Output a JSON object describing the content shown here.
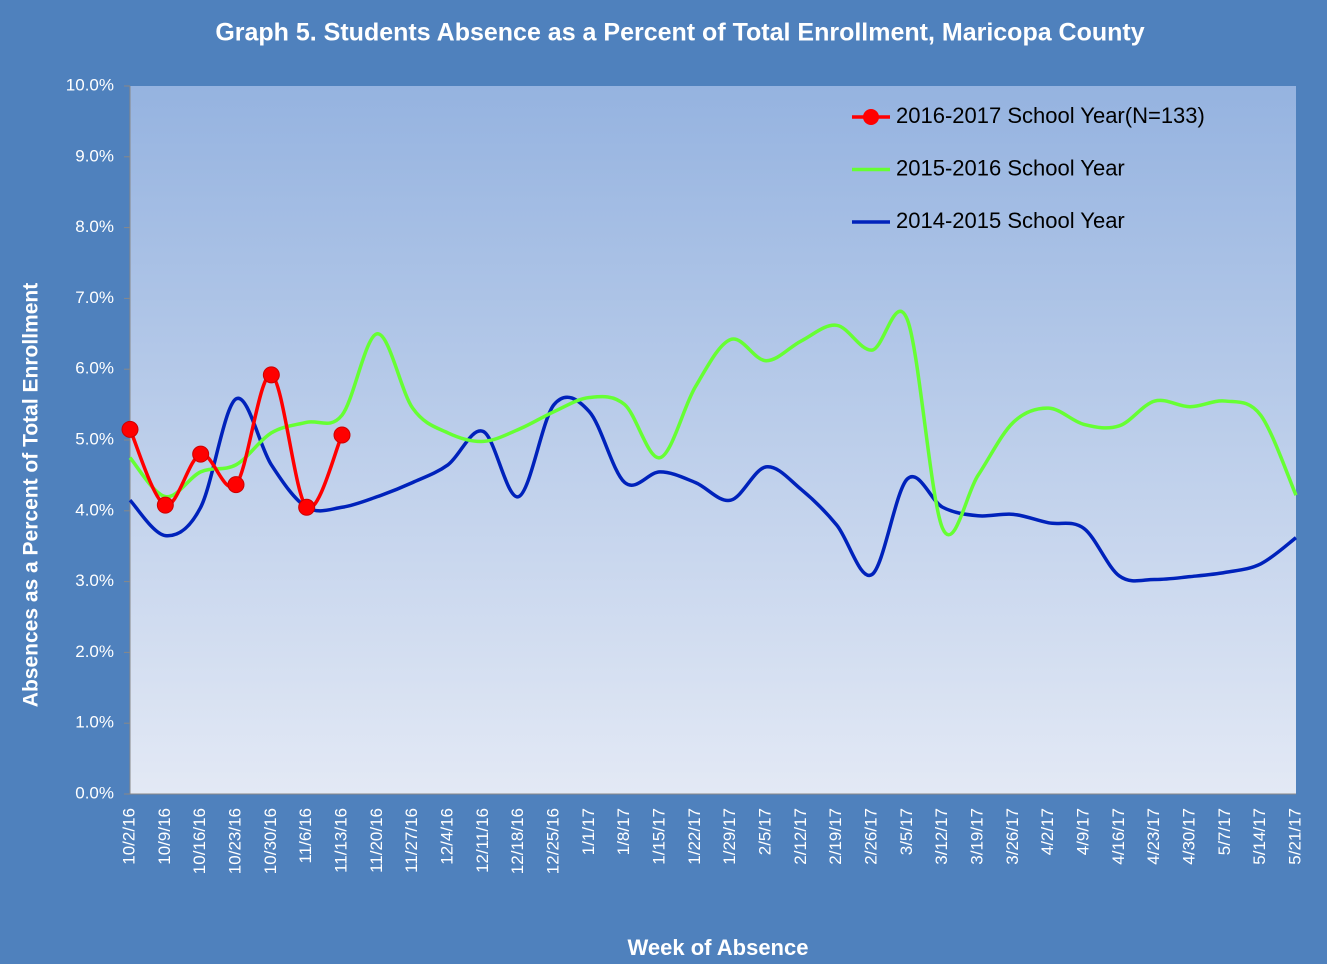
{
  "chart_data": {
    "type": "line",
    "title": "Graph 5. Students Absence as a Percent of Total Enrollment, Maricopa County",
    "x_label": "Week of Absence",
    "y_label": "Absences as a Percent of Total Enrollment",
    "categories": [
      "10/2/16",
      "10/9/16",
      "10/16/16",
      "10/23/16",
      "10/30/16",
      "11/6/16",
      "11/13/16",
      "11/20/16",
      "11/27/16",
      "12/4/16",
      "12/11/16",
      "12/18/16",
      "12/25/16",
      "1/1/17",
      "1/8/17",
      "1/15/17",
      "1/22/17",
      "1/29/17",
      "2/5/17",
      "2/12/17",
      "2/19/17",
      "2/26/17",
      "3/5/17",
      "3/12/17",
      "3/19/17",
      "3/26/17",
      "4/2/17",
      "4/9/17",
      "4/16/17",
      "4/23/17",
      "4/30/17",
      "5/7/17",
      "5/14/17",
      "5/21/17"
    ],
    "series": [
      {
        "name": "2016-2017 School Year(N=133)",
        "color": "#ff0000",
        "markers": true,
        "values": [
          5.15,
          4.08,
          4.8,
          4.37,
          5.92,
          4.05,
          5.07,
          null,
          null,
          null,
          null,
          null,
          null,
          null,
          null,
          null,
          null,
          null,
          null,
          null,
          null,
          null,
          null,
          null,
          null,
          null,
          null,
          null,
          null,
          null,
          null,
          null,
          null,
          null
        ]
      },
      {
        "name": "2015-2016 School Year",
        "color": "#66ff33",
        "markers": false,
        "values": [
          4.75,
          4.2,
          4.55,
          4.65,
          5.1,
          5.25,
          5.35,
          6.5,
          5.45,
          5.1,
          4.98,
          5.15,
          5.4,
          5.6,
          5.5,
          4.75,
          5.75,
          6.42,
          6.12,
          6.4,
          6.62,
          6.27,
          6.7,
          3.75,
          4.5,
          5.25,
          5.45,
          5.22,
          5.2,
          5.55,
          5.47,
          5.55,
          5.35,
          4.22
        ]
      },
      {
        "name": "2014-2015 School Year",
        "color": "#0022bb",
        "markers": false,
        "values": [
          4.15,
          3.65,
          4.05,
          5.58,
          4.65,
          4.05,
          4.05,
          4.2,
          4.4,
          4.65,
          5.12,
          4.2,
          5.5,
          5.4,
          4.4,
          4.55,
          4.4,
          4.15,
          4.62,
          4.3,
          3.8,
          3.1,
          4.45,
          4.05,
          3.93,
          3.95,
          3.83,
          3.75,
          3.08,
          3.03,
          3.07,
          3.13,
          3.25,
          3.62
        ]
      }
    ],
    "ylim": [
      0,
      10
    ],
    "yticks": [
      {
        "value": 0,
        "label": "0.0%"
      },
      {
        "value": 1,
        "label": "1.0%"
      },
      {
        "value": 2,
        "label": "2.0%"
      },
      {
        "value": 3,
        "label": "3.0%"
      },
      {
        "value": 4,
        "label": "4.0%"
      },
      {
        "value": 5,
        "label": "5.0%"
      },
      {
        "value": 6,
        "label": "6.0%"
      },
      {
        "value": 7,
        "label": "7.0%"
      },
      {
        "value": 8,
        "label": "8.0%"
      },
      {
        "value": 9,
        "label": "9.0%"
      },
      {
        "value": 10,
        "label": "10.0%"
      }
    ],
    "grid": false,
    "smooth": true,
    "legend": "top-right"
  }
}
